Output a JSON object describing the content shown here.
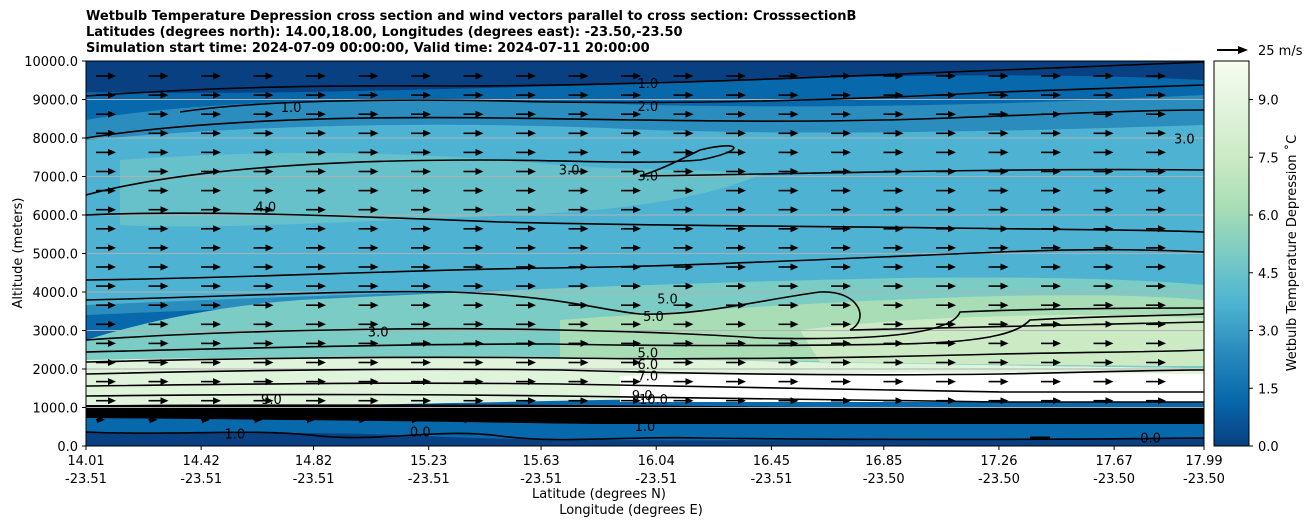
{
  "chart_data": {
    "type": "heatmap",
    "subtype": "filled-contour cross section with contour lines and wind vectors",
    "title_lines": [
      "Wetbulb Temperature Depression cross section and wind vectors parallel to cross section: CrosssectionB",
      "Latitudes (degrees north): 14.00,18.00, Longitudes (degrees east): -23.50,-23.50",
      "Simulation start time: 2024-07-09 00:00:00, Valid time: 2024-07-11 20:00:00"
    ],
    "ylabel": "Altitude (meters)",
    "xlabel_line1": "Latitude (degrees N)",
    "xlabel_line2": "Longitude (degrees E)",
    "ylim": [
      0,
      10000
    ],
    "yticks": [
      "0.0",
      "1000.0",
      "2000.0",
      "3000.0",
      "4000.0",
      "5000.0",
      "6000.0",
      "7000.0",
      "8000.0",
      "9000.0",
      "10000.0"
    ],
    "ytick_values": [
      0,
      1000,
      2000,
      3000,
      4000,
      5000,
      6000,
      7000,
      8000,
      9000,
      10000
    ],
    "grid": "horizontal",
    "xticks": [
      {
        "lat": "14.01",
        "lon": "-23.51"
      },
      {
        "lat": "14.42",
        "lon": "-23.51"
      },
      {
        "lat": "14.82",
        "lon": "-23.51"
      },
      {
        "lat": "15.23",
        "lon": "-23.51"
      },
      {
        "lat": "15.63",
        "lon": "-23.51"
      },
      {
        "lat": "16.04",
        "lon": "-23.51"
      },
      {
        "lat": "16.45",
        "lon": "-23.51"
      },
      {
        "lat": "16.85",
        "lon": "-23.50"
      },
      {
        "lat": "17.26",
        "lon": "-23.50"
      },
      {
        "lat": "17.67",
        "lon": "-23.50"
      },
      {
        "lat": "17.99",
        "lon": "-23.50"
      }
    ],
    "colorbar": {
      "label": "Wetbulb Temperature Depression ˚C",
      "range": [
        0,
        10
      ],
      "ticks": [
        "0.0",
        "1.5",
        "3.0",
        "4.5",
        "6.0",
        "7.5",
        "9.0"
      ],
      "tick_values": [
        0,
        1.5,
        3,
        4.5,
        6,
        7.5,
        9
      ],
      "levels": 20,
      "colormap": "GnBu_r",
      "colors": [
        "#084081",
        "#0868ac",
        "#2b8cbe",
        "#4eb3d3",
        "#7bccc4",
        "#a8ddb5",
        "#ccebc5",
        "#e0f3db",
        "#f7fcf0"
      ]
    },
    "wind_reference": {
      "label": "25 m/s",
      "speed": 25
    },
    "contour_labels": [
      {
        "text": "1.0",
        "lat": 16.01,
        "alt": 9400
      },
      {
        "text": "2.0",
        "lat": 16.01,
        "alt": 8800
      },
      {
        "text": "1.0",
        "lat": 14.74,
        "alt": 8780
      },
      {
        "text": "3.0",
        "lat": 16.01,
        "alt": 7000
      },
      {
        "text": "3.0",
        "lat": 15.73,
        "alt": 7150
      },
      {
        "text": "3.0",
        "lat": 17.92,
        "alt": 7960
      },
      {
        "text": "4.0",
        "lat": 14.65,
        "alt": 6200
      },
      {
        "text": "5.0",
        "lat": 16.03,
        "alt": 3350
      },
      {
        "text": "5.0",
        "lat": 16.08,
        "alt": 3800
      },
      {
        "text": "5.0",
        "lat": 16.01,
        "alt": 2400
      },
      {
        "text": "6.0",
        "lat": 16.01,
        "alt": 2100
      },
      {
        "text": "7.0",
        "lat": 16.01,
        "alt": 1800
      },
      {
        "text": "10.0",
        "lat": 16.03,
        "alt": 1200
      },
      {
        "text": "9.0",
        "lat": 15.99,
        "alt": 1300
      },
      {
        "text": "9.0",
        "lat": 14.67,
        "alt": 1200
      },
      {
        "text": "1.0",
        "lat": 16.0,
        "alt": 500
      },
      {
        "text": "0.0",
        "lat": 15.2,
        "alt": 350
      },
      {
        "text": "0.0",
        "lat": 17.8,
        "alt": 200
      },
      {
        "text": "1.0",
        "lat": 14.54,
        "alt": 300
      },
      {
        "text": "3.0",
        "lat": 15.05,
        "alt": 2950
      }
    ]
  }
}
